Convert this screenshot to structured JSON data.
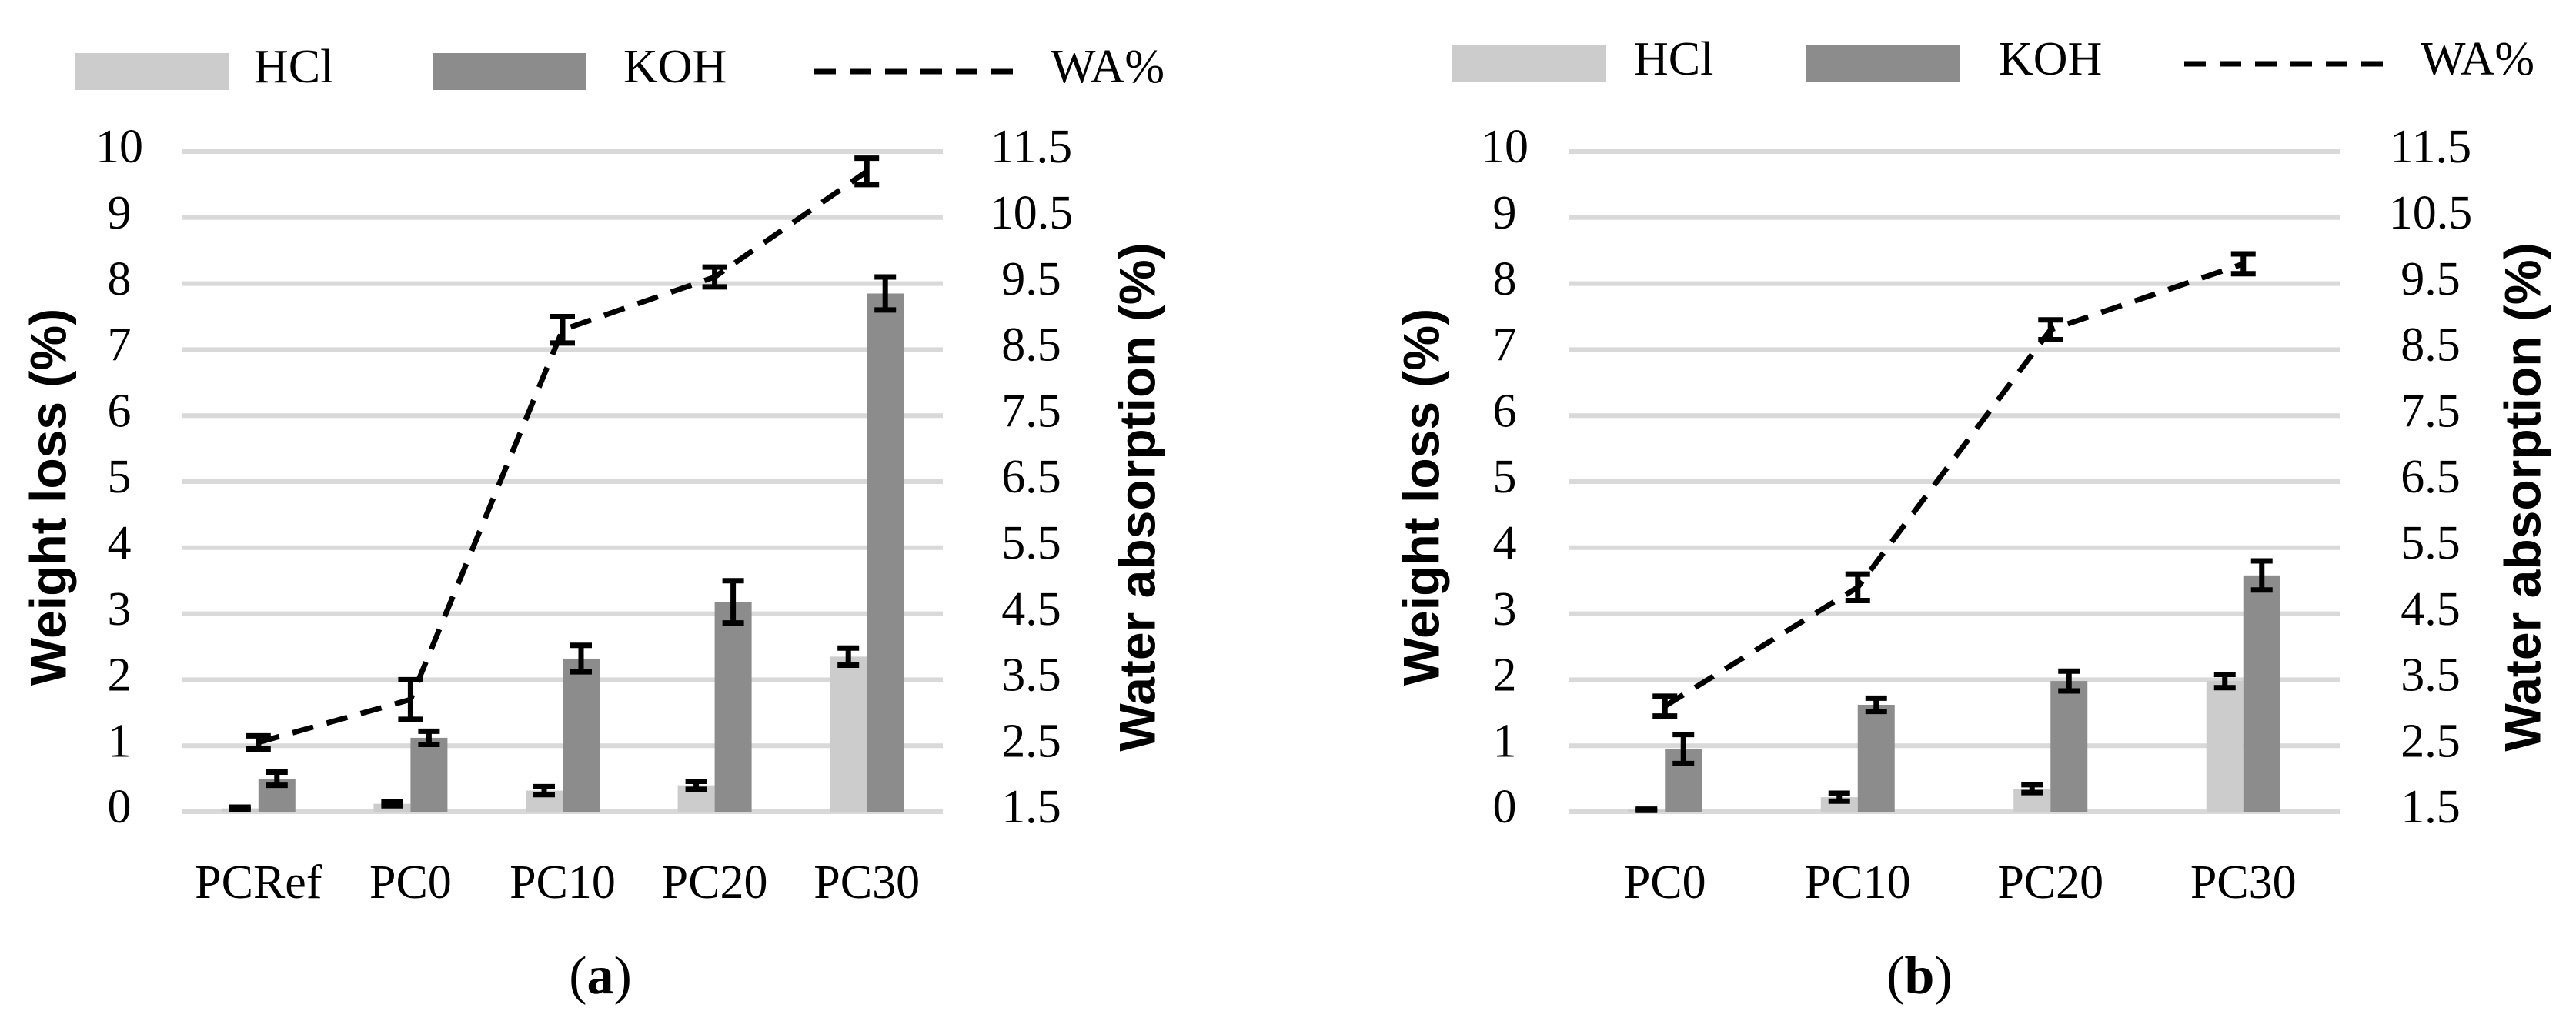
{
  "chart_data": [
    {
      "type": "bar",
      "panel_label": "a",
      "legend": [
        "HCl",
        "KOH",
        "WA%"
      ],
      "categories": [
        "PCRef",
        "PC0",
        "PC10",
        "PC20",
        "PC30"
      ],
      "series": [
        {
          "name": "HCl",
          "axis": "left",
          "kind": "bar",
          "color": "#cccccc",
          "values": [
            0.05,
            0.12,
            0.32,
            0.4,
            2.35
          ],
          "errors": [
            0.02,
            0.03,
            0.06,
            0.06,
            0.13
          ]
        },
        {
          "name": "KOH",
          "axis": "left",
          "kind": "bar",
          "color": "#8c8c8c",
          "values": [
            0.5,
            1.12,
            2.32,
            3.18,
            7.85
          ],
          "errors": [
            0.1,
            0.1,
            0.2,
            0.32,
            0.25
          ]
        },
        {
          "name": "WA%",
          "axis": "right",
          "kind": "line",
          "style": "dashed",
          "color": "#000000",
          "values": [
            2.55,
            3.2,
            8.8,
            9.6,
            11.2
          ],
          "errors": [
            0.1,
            0.3,
            0.2,
            0.15,
            0.2
          ]
        }
      ],
      "ylabel": "Weight loss (%)",
      "y2label": "Water absorption (%)",
      "ylim": [
        0,
        10
      ],
      "y2lim": [
        1.5,
        11.5
      ],
      "yticks": [
        "0",
        "1",
        "2",
        "3",
        "4",
        "5",
        "6",
        "7",
        "8",
        "9",
        "10"
      ],
      "y2ticks": [
        "1.5",
        "2.5",
        "3.5",
        "4.5",
        "5.5",
        "6.5",
        "7.5",
        "8.5",
        "9.5",
        "10.5",
        "11.5"
      ]
    },
    {
      "type": "bar",
      "panel_label": "b",
      "legend": [
        "HCl",
        "KOH",
        "WA%"
      ],
      "categories": [
        "PC0",
        "PC10",
        "PC20",
        "PC30"
      ],
      "series": [
        {
          "name": "HCl",
          "axis": "left",
          "kind": "bar",
          "color": "#cccccc",
          "values": [
            0.03,
            0.22,
            0.35,
            1.98
          ],
          "errors": [
            0.01,
            0.06,
            0.06,
            0.1
          ]
        },
        {
          "name": "KOH",
          "axis": "left",
          "kind": "bar",
          "color": "#8c8c8c",
          "values": [
            0.95,
            1.62,
            1.98,
            3.58
          ],
          "errors": [
            0.22,
            0.1,
            0.15,
            0.22
          ]
        },
        {
          "name": "WA%",
          "axis": "right",
          "kind": "line",
          "style": "dashed",
          "color": "#000000",
          "values": [
            3.1,
            4.9,
            8.8,
            9.8
          ],
          "errors": [
            0.15,
            0.2,
            0.15,
            0.15
          ]
        }
      ],
      "ylabel": "Weight loss (%)",
      "y2label": "Water absorption (%)",
      "ylim": [
        0,
        10
      ],
      "y2lim": [
        1.5,
        11.5
      ],
      "yticks": [
        "0",
        "1",
        "2",
        "3",
        "4",
        "5",
        "6",
        "7",
        "8",
        "9",
        "10"
      ],
      "y2ticks": [
        "1.5",
        "2.5",
        "3.5",
        "4.5",
        "5.5",
        "6.5",
        "7.5",
        "8.5",
        "9.5",
        "10.5",
        "11.5"
      ]
    }
  ]
}
